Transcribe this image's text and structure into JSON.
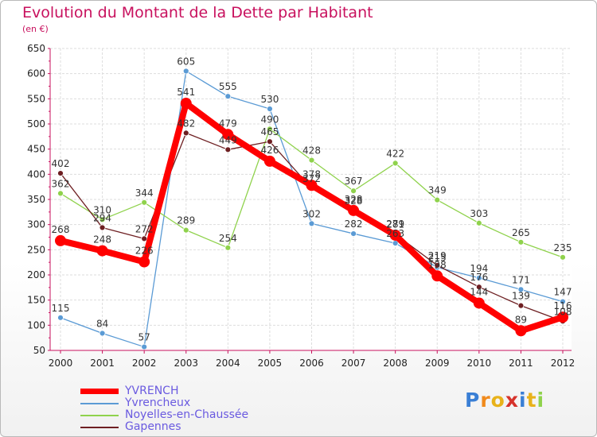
{
  "title": "Evolution du Montant de la Dette par Habitant",
  "subtitle": "(en €)",
  "logo": "Proxiti",
  "chart_data": {
    "type": "line",
    "title": "Evolution du Montant de la Dette par Habitant",
    "subtitle": "(en €)",
    "x": [
      "2000",
      "2001",
      "2002",
      "2003",
      "2004",
      "2005",
      "2006",
      "2007",
      "2008",
      "2009",
      "2010",
      "2011",
      "2012"
    ],
    "ylim": [
      50,
      650
    ],
    "yticks": [
      50,
      100,
      150,
      200,
      250,
      300,
      350,
      400,
      450,
      500,
      550,
      600,
      650
    ],
    "grid": true,
    "legend_position": "bottom-left",
    "series": [
      {
        "name": "Yvrencheux",
        "color": "#5b9bd5",
        "values": [
          115,
          84,
          57,
          605,
          555,
          530,
          302,
          282,
          263,
          215,
          194,
          171,
          147
        ]
      },
      {
        "name": "Noyelles-en-Chaussée",
        "color": "#8fd24c",
        "values": [
          362,
          310,
          344,
          289,
          254,
          490,
          428,
          367,
          422,
          349,
          303,
          265,
          235
        ]
      },
      {
        "name": "Gapennes",
        "color": "#6e1f22",
        "values": [
          402,
          294,
          272,
          482,
          449,
          465,
          372,
          328,
          281,
          219,
          176,
          139,
          108
        ]
      },
      {
        "name": "YVRENCH",
        "color": "#ff0000",
        "values": [
          268,
          248,
          226,
          541,
          479,
          426,
          378,
          328,
          279,
          198,
          144,
          89,
          116
        ]
      }
    ],
    "legend": [
      "YVRENCH",
      "Yvrencheux",
      "Noyelles-en-Chaussée",
      "Gapennes"
    ]
  }
}
